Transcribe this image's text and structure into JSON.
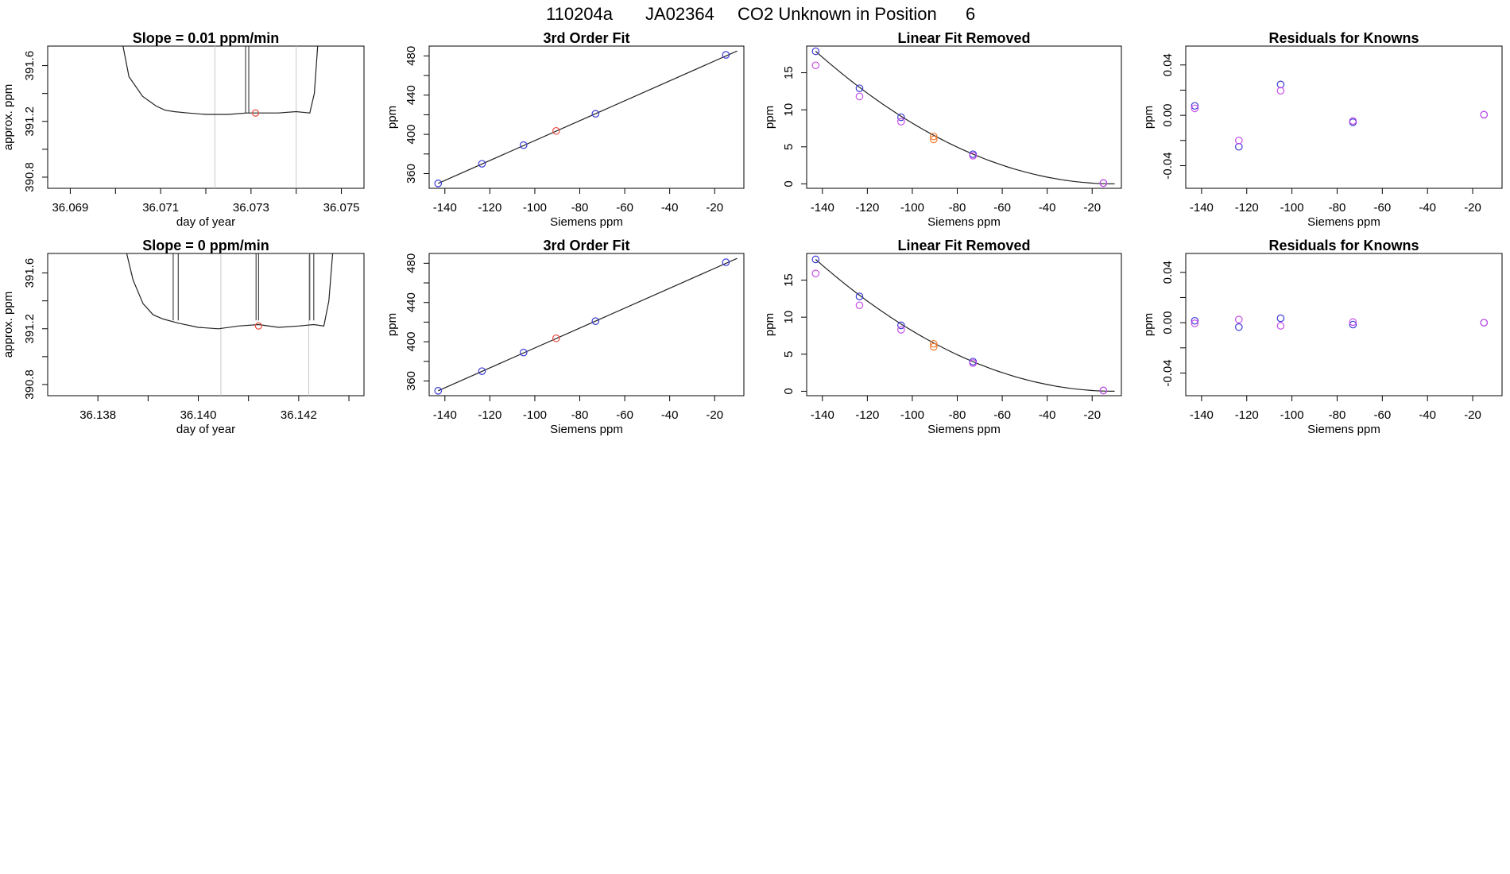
{
  "figure": {
    "title_parts": [
      "110204a",
      "JA02364",
      "CO2 Unknown in Position",
      "6"
    ]
  },
  "chart_data": [
    {
      "id": "r1c1",
      "type": "line",
      "title": "Slope =  0.01  ppm/min",
      "xlabel": "day of year",
      "ylabel": "approx. ppm",
      "xlim": [
        36.0685,
        36.0755
      ],
      "ylim": [
        390.72,
        391.74
      ],
      "xticks": [
        36.069,
        36.07,
        36.071,
        36.072,
        36.073,
        36.074,
        36.075
      ],
      "xticklabels": [
        "36.069",
        "",
        "36.071",
        "",
        "36.073",
        "",
        "36.075"
      ],
      "yticks": [
        390.8,
        391.0,
        391.2,
        391.4,
        391.6
      ],
      "yticklabels": [
        "390.8",
        "",
        "391.2",
        "",
        "391.6"
      ],
      "vlines": [
        36.0722,
        36.074
      ],
      "trace": {
        "x": [
          36.0701,
          36.0703,
          36.0706,
          36.0709,
          36.0711,
          36.0713,
          36.0716,
          36.072,
          36.0725,
          36.0729,
          36.0732,
          36.0736,
          36.074,
          36.0743,
          36.0744,
          36.0745
        ],
        "y": [
          391.85,
          391.52,
          391.38,
          391.31,
          391.28,
          391.27,
          391.26,
          391.25,
          391.25,
          391.26,
          391.26,
          391.26,
          391.27,
          391.26,
          391.4,
          391.85
        ]
      },
      "spikes": [
        36.07288,
        36.07295
      ],
      "marker": {
        "x": 36.0731,
        "y": 391.26,
        "color": "#e8483e"
      }
    },
    {
      "id": "r1c2",
      "type": "scatter",
      "title": "3rd Order Fit",
      "xlabel": "Siemens ppm",
      "ylabel": "ppm",
      "xlim": [
        -147,
        -7
      ],
      "ylim": [
        345,
        490
      ],
      "xticks": [
        -140,
        -120,
        -100,
        -80,
        -60,
        -40,
        -20
      ],
      "xticklabels": [
        "-140",
        "-120",
        "-100",
        "-80",
        "-60",
        "-40",
        "-20"
      ],
      "yticks": [
        360,
        380,
        400,
        420,
        440,
        460,
        480
      ],
      "yticklabels": [
        "360",
        "",
        "400",
        "",
        "440",
        "",
        "480"
      ],
      "fit_line": {
        "x": [
          -143,
          -10
        ],
        "y": [
          350,
          485
        ]
      },
      "points": [
        {
          "x": -143,
          "y": 350,
          "color": "#3b3bd6"
        },
        {
          "x": -123.5,
          "y": 370,
          "color": "#3b3bd6"
        },
        {
          "x": -105,
          "y": 389,
          "color": "#3b3bd6"
        },
        {
          "x": -90.5,
          "y": 403.5,
          "color": "#e8483e"
        },
        {
          "x": -73,
          "y": 421,
          "color": "#3b3bd6"
        },
        {
          "x": -15,
          "y": 481,
          "color": "#3b3bd6"
        }
      ]
    },
    {
      "id": "r1c3",
      "type": "scatter",
      "title": "Linear Fit Removed",
      "xlabel": "Siemens ppm",
      "ylabel": "ppm",
      "xlim": [
        -147,
        -7
      ],
      "ylim": [
        -0.6,
        18.6
      ],
      "xticks": [
        -140,
        -120,
        -100,
        -80,
        -60,
        -40,
        -20
      ],
      "xticklabels": [
        "-140",
        "-120",
        "-100",
        "-80",
        "-60",
        "-40",
        "-20"
      ],
      "yticks": [
        0,
        5,
        10,
        15
      ],
      "yticklabels": [
        "0",
        "5",
        "10",
        "15"
      ],
      "curve": {
        "x0": -143,
        "x1": -10,
        "y0": 17.9,
        "vertex": -10
      },
      "points": [
        {
          "x": -143,
          "y": 17.9,
          "color": "#3b3bd6"
        },
        {
          "x": -143,
          "y": 16.0,
          "color": "#c84ee8"
        },
        {
          "x": -123.5,
          "y": 12.9,
          "color": "#3b3bd6"
        },
        {
          "x": -123.5,
          "y": 11.8,
          "color": "#c84ee8"
        },
        {
          "x": -105,
          "y": 9.0,
          "color": "#3b3bd6"
        },
        {
          "x": -105,
          "y": 8.4,
          "color": "#c84ee8"
        },
        {
          "x": -90.5,
          "y": 6.4,
          "color": "#f07a2c"
        },
        {
          "x": -90.5,
          "y": 6.0,
          "color": "#f07a2c"
        },
        {
          "x": -73,
          "y": 4.0,
          "color": "#3b3bd6"
        },
        {
          "x": -73,
          "y": 3.8,
          "color": "#c84ee8"
        },
        {
          "x": -15,
          "y": 0.1,
          "color": "#3b3bd6"
        },
        {
          "x": -15,
          "y": 0.1,
          "color": "#c84ee8"
        }
      ]
    },
    {
      "id": "r1c4",
      "type": "scatter",
      "title": "Residuals for Knowns",
      "xlabel": "Siemens ppm",
      "ylabel": "ppm",
      "xlim": [
        -147,
        -7
      ],
      "ylim": [
        -0.058,
        0.055
      ],
      "xticks": [
        -140,
        -120,
        -100,
        -80,
        -60,
        -40,
        -20
      ],
      "xticklabels": [
        "-140",
        "-120",
        "-100",
        "-80",
        "-60",
        "-40",
        "-20"
      ],
      "yticks": [
        -0.04,
        -0.02,
        0.0,
        0.02,
        0.04
      ],
      "yticklabels": [
        "-0.04",
        "",
        "0.00",
        "",
        "0.04"
      ],
      "points": [
        {
          "x": -143,
          "y": 0.0075,
          "color": "#3b3bd6"
        },
        {
          "x": -143,
          "y": 0.0055,
          "color": "#c84ee8"
        },
        {
          "x": -123.5,
          "y": -0.025,
          "color": "#3b3bd6"
        },
        {
          "x": -123.5,
          "y": -0.02,
          "color": "#c84ee8"
        },
        {
          "x": -105,
          "y": 0.0245,
          "color": "#3b3bd6"
        },
        {
          "x": -105,
          "y": 0.0195,
          "color": "#c84ee8"
        },
        {
          "x": -73,
          "y": -0.0055,
          "color": "#3b3bd6"
        },
        {
          "x": -73,
          "y": -0.0045,
          "color": "#c84ee8"
        },
        {
          "x": -15,
          "y": 0.0005,
          "color": "#3b3bd6"
        },
        {
          "x": -15,
          "y": 0.0005,
          "color": "#c84ee8"
        }
      ]
    },
    {
      "id": "r2c1",
      "type": "line",
      "title": "Slope =  0  ppm/min",
      "xlabel": "day of year",
      "ylabel": "approx. ppm",
      "xlim": [
        36.137,
        36.1433
      ],
      "ylim": [
        390.72,
        391.74
      ],
      "xticks": [
        36.138,
        36.139,
        36.14,
        36.141,
        36.142,
        36.143
      ],
      "xticklabels": [
        "36.138",
        "",
        "36.140",
        "",
        "36.142",
        ""
      ],
      "yticks": [
        390.8,
        391.0,
        391.2,
        391.4,
        391.6
      ],
      "yticklabels": [
        "390.8",
        "",
        "391.2",
        "",
        "391.6"
      ],
      "vlines": [
        36.14045,
        36.1422
      ],
      "trace": {
        "x": [
          36.1385,
          36.1387,
          36.1389,
          36.1391,
          36.1393,
          36.1396,
          36.14,
          36.1404,
          36.1408,
          36.1412,
          36.1416,
          36.142,
          36.1423,
          36.1425,
          36.1426,
          36.1427
        ],
        "y": [
          391.85,
          391.55,
          391.38,
          391.3,
          391.27,
          391.24,
          391.21,
          391.2,
          391.22,
          391.23,
          391.21,
          391.22,
          391.23,
          391.22,
          391.4,
          391.85
        ]
      },
      "spikes": [
        36.1395,
        36.1396,
        36.14115,
        36.1412,
        36.14222,
        36.1423
      ],
      "marker": {
        "x": 36.1412,
        "y": 391.22,
        "color": "#e8483e"
      }
    },
    {
      "id": "r2c2",
      "type": "scatter",
      "title": "3rd Order Fit",
      "xlabel": "Siemens ppm",
      "ylabel": "ppm",
      "xlim": [
        -147,
        -7
      ],
      "ylim": [
        345,
        490
      ],
      "xticks": [
        -140,
        -120,
        -100,
        -80,
        -60,
        -40,
        -20
      ],
      "xticklabels": [
        "-140",
        "-120",
        "-100",
        "-80",
        "-60",
        "-40",
        "-20"
      ],
      "yticks": [
        360,
        380,
        400,
        420,
        440,
        460,
        480
      ],
      "yticklabels": [
        "360",
        "",
        "400",
        "",
        "440",
        "",
        "480"
      ],
      "fit_line": {
        "x": [
          -143,
          -10
        ],
        "y": [
          350,
          485
        ]
      },
      "points": [
        {
          "x": -143,
          "y": 350,
          "color": "#3b3bd6"
        },
        {
          "x": -123.5,
          "y": 370,
          "color": "#3b3bd6"
        },
        {
          "x": -105,
          "y": 389,
          "color": "#3b3bd6"
        },
        {
          "x": -90.5,
          "y": 403.5,
          "color": "#e8483e"
        },
        {
          "x": -73,
          "y": 421,
          "color": "#3b3bd6"
        },
        {
          "x": -15,
          "y": 481,
          "color": "#3b3bd6"
        }
      ]
    },
    {
      "id": "r2c3",
      "type": "scatter",
      "title": "Linear Fit Removed",
      "xlabel": "Siemens ppm",
      "ylabel": "ppm",
      "xlim": [
        -147,
        -7
      ],
      "ylim": [
        -0.6,
        18.6
      ],
      "xticks": [
        -140,
        -120,
        -100,
        -80,
        -60,
        -40,
        -20
      ],
      "xticklabels": [
        "-140",
        "-120",
        "-100",
        "-80",
        "-60",
        "-40",
        "-20"
      ],
      "yticks": [
        0,
        5,
        10,
        15
      ],
      "yticklabels": [
        "0",
        "5",
        "10",
        "15"
      ],
      "curve": {
        "x0": -143,
        "x1": -10,
        "y0": 17.8,
        "vertex": -10
      },
      "points": [
        {
          "x": -143,
          "y": 17.8,
          "color": "#3b3bd6"
        },
        {
          "x": -143,
          "y": 15.9,
          "color": "#c84ee8"
        },
        {
          "x": -123.5,
          "y": 12.8,
          "color": "#3b3bd6"
        },
        {
          "x": -123.5,
          "y": 11.6,
          "color": "#c84ee8"
        },
        {
          "x": -105,
          "y": 8.9,
          "color": "#3b3bd6"
        },
        {
          "x": -105,
          "y": 8.3,
          "color": "#c84ee8"
        },
        {
          "x": -90.5,
          "y": 6.4,
          "color": "#f07a2c"
        },
        {
          "x": -90.5,
          "y": 6.0,
          "color": "#f07a2c"
        },
        {
          "x": -73,
          "y": 4.0,
          "color": "#3b3bd6"
        },
        {
          "x": -73,
          "y": 3.8,
          "color": "#c84ee8"
        },
        {
          "x": -15,
          "y": 0.1,
          "color": "#3b3bd6"
        },
        {
          "x": -15,
          "y": 0.1,
          "color": "#c84ee8"
        }
      ]
    },
    {
      "id": "r2c4",
      "type": "scatter",
      "title": "Residuals for Knowns",
      "xlabel": "Siemens ppm",
      "ylabel": "ppm",
      "xlim": [
        -147,
        -7
      ],
      "ylim": [
        -0.058,
        0.055
      ],
      "xticks": [
        -140,
        -120,
        -100,
        -80,
        -60,
        -40,
        -20
      ],
      "xticklabels": [
        "-140",
        "-120",
        "-100",
        "-80",
        "-60",
        "-40",
        "-20"
      ],
      "yticks": [
        -0.04,
        -0.02,
        0.0,
        0.02,
        0.04
      ],
      "yticklabels": [
        "-0.04",
        "",
        "0.00",
        "",
        "0.04"
      ],
      "points": [
        {
          "x": -143,
          "y": 0.0015,
          "color": "#3b3bd6"
        },
        {
          "x": -143,
          "y": -0.0005,
          "color": "#c84ee8"
        },
        {
          "x": -123.5,
          "y": -0.0035,
          "color": "#3b3bd6"
        },
        {
          "x": -123.5,
          "y": 0.0025,
          "color": "#c84ee8"
        },
        {
          "x": -105,
          "y": 0.0035,
          "color": "#3b3bd6"
        },
        {
          "x": -105,
          "y": -0.0025,
          "color": "#c84ee8"
        },
        {
          "x": -73,
          "y": -0.0015,
          "color": "#3b3bd6"
        },
        {
          "x": -73,
          "y": 0.0005,
          "color": "#c84ee8"
        },
        {
          "x": -15,
          "y": 0.0,
          "color": "#3b3bd6"
        },
        {
          "x": -15,
          "y": 0.0,
          "color": "#c84ee8"
        }
      ]
    }
  ]
}
